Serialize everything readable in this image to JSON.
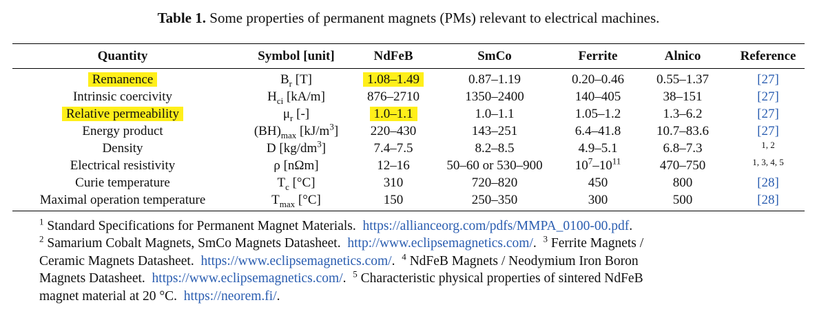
{
  "caption": {
    "label": "Table 1.",
    "text": " Some properties of permanent magnets (PMs) relevant to electrical machines."
  },
  "table": {
    "header": [
      "Quantity",
      "Symbol [unit]",
      "NdFeB",
      "SmCo",
      "Ferrite",
      "Alnico",
      "Reference"
    ],
    "rows": [
      [
        [
          {
            "text": "Remanence",
            "mark": true
          }
        ],
        [
          {
            "text": "B"
          },
          {
            "sub": "r"
          },
          {
            "text": " [T]"
          }
        ],
        [
          {
            "text": "1.08–1.49",
            "mark": true
          }
        ],
        [
          {
            "text": "0.87–1.19"
          }
        ],
        [
          {
            "text": "0.20–0.46"
          }
        ],
        [
          {
            "text": "0.55–1.37"
          }
        ],
        [
          {
            "link": "[27]"
          }
        ]
      ],
      [
        [
          {
            "text": "Intrinsic coercivity"
          }
        ],
        [
          {
            "text": "H"
          },
          {
            "sub": "ci"
          },
          {
            "text": " [kA/m]"
          }
        ],
        [
          {
            "text": "876–2710"
          }
        ],
        [
          {
            "text": "1350–2400"
          }
        ],
        [
          {
            "text": "140–405"
          }
        ],
        [
          {
            "text": "38–151"
          }
        ],
        [
          {
            "link": "[27]"
          }
        ]
      ],
      [
        [
          {
            "text": "Relative permeability",
            "mark": true
          }
        ],
        [
          {
            "text": "μ"
          },
          {
            "sub": "r"
          },
          {
            "text": " [-]"
          }
        ],
        [
          {
            "text": "1.0–1.1",
            "mark": true
          }
        ],
        [
          {
            "text": "1.0–1.1"
          }
        ],
        [
          {
            "text": "1.05–1.2"
          }
        ],
        [
          {
            "text": "1.3–6.2"
          }
        ],
        [
          {
            "link": "[27]"
          }
        ]
      ],
      [
        [
          {
            "text": "Energy product"
          }
        ],
        [
          {
            "text": "(BH)"
          },
          {
            "sub": "max"
          },
          {
            "text": " [kJ/m"
          },
          {
            "sup": "3"
          },
          {
            "text": "]"
          }
        ],
        [
          {
            "text": "220–430"
          }
        ],
        [
          {
            "text": "143–251"
          }
        ],
        [
          {
            "text": "6.4–41.8"
          }
        ],
        [
          {
            "text": "10.7–83.6"
          }
        ],
        [
          {
            "link": "[27]"
          }
        ]
      ],
      [
        [
          {
            "text": "Density"
          }
        ],
        [
          {
            "text": "D [kg/dm"
          },
          {
            "sup": "3"
          },
          {
            "text": "]"
          }
        ],
        [
          {
            "text": "7.4–7.5"
          }
        ],
        [
          {
            "text": "8.2–8.5"
          }
        ],
        [
          {
            "text": "4.9–5.1"
          }
        ],
        [
          {
            "text": "6.8–7.3"
          }
        ],
        [
          {
            "sup": "1, 2"
          }
        ]
      ],
      [
        [
          {
            "text": "Electrical resistivity"
          }
        ],
        [
          {
            "text": "ρ [nΩm]"
          }
        ],
        [
          {
            "text": "12–16"
          }
        ],
        [
          {
            "text": "50–60 or 530–900"
          }
        ],
        [
          {
            "text": "10"
          },
          {
            "sup": "7"
          },
          {
            "text": "–10"
          },
          {
            "sup": "11"
          }
        ],
        [
          {
            "text": "470–750"
          }
        ],
        [
          {
            "sup": "1, 3, 4, 5"
          }
        ]
      ],
      [
        [
          {
            "text": "Curie temperature"
          }
        ],
        [
          {
            "text": "T"
          },
          {
            "sub": "c"
          },
          {
            "text": " [°C]"
          }
        ],
        [
          {
            "text": "310"
          }
        ],
        [
          {
            "text": "720–820"
          }
        ],
        [
          {
            "text": "450"
          }
        ],
        [
          {
            "text": "800"
          }
        ],
        [
          {
            "link": "[28]"
          }
        ]
      ],
      [
        [
          {
            "text": "Maximal operation temperature"
          }
        ],
        [
          {
            "text": "T"
          },
          {
            "sub": "max"
          },
          {
            "text": " [°C]"
          }
        ],
        [
          {
            "text": "150"
          }
        ],
        [
          {
            "text": "250–350"
          }
        ],
        [
          {
            "text": "300"
          }
        ],
        [
          {
            "text": "500"
          }
        ],
        [
          {
            "link": "[28]"
          }
        ]
      ]
    ]
  },
  "footnotes": [
    [
      {
        "sup": "1"
      },
      {
        "text": " Standard Specifications for Permanent Magnet Materials.  "
      },
      {
        "link": "https://allianceorg.com/pdfs/MMPA_0100-00.pdf"
      },
      {
        "text": "."
      }
    ],
    [
      {
        "sup": "2"
      },
      {
        "text": " Samarium Cobalt Magnets, SmCo Magnets Datasheet.  "
      },
      {
        "link": "http://www.eclipsemagnetics.com/"
      },
      {
        "text": ".  "
      },
      {
        "sup": "3"
      },
      {
        "text": " Ferrite Magnets /"
      }
    ],
    [
      {
        "text": "Ceramic Magnets Datasheet.  "
      },
      {
        "link": "https://www.eclipsemagnetics.com/"
      },
      {
        "text": ".  "
      },
      {
        "sup": "4"
      },
      {
        "text": " NdFeB Magnets / Neodymium Iron Boron"
      }
    ],
    [
      {
        "text": "Magnets Datasheet.  "
      },
      {
        "link": "https://www.eclipsemagnetics.com/"
      },
      {
        "text": ".  "
      },
      {
        "sup": "5"
      },
      {
        "text": " Characteristic physical properties of sintered NdFeB"
      }
    ],
    [
      {
        "text": "magnet material at 20 °C.  "
      },
      {
        "link": "https://neorem.fi/"
      },
      {
        "text": "."
      }
    ]
  ]
}
